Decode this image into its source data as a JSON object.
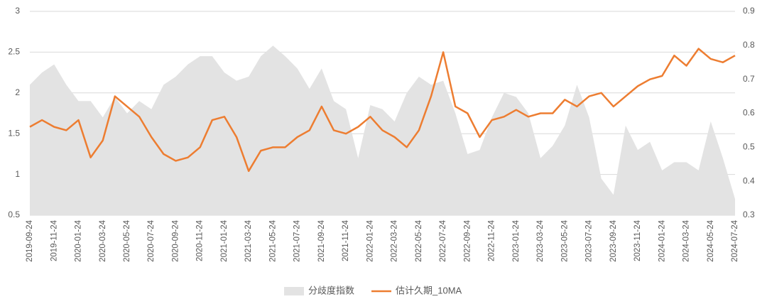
{
  "chart_data": {
    "type": "area-line",
    "categories": [
      "2019-09-24",
      null,
      "2019-11-24",
      null,
      "2020-01-24",
      null,
      "2020-03-24",
      null,
      "2020-05-24",
      null,
      "2020-07-24",
      null,
      "2020-09-24",
      null,
      "2020-11-24",
      null,
      "2021-01-24",
      null,
      "2021-03-24",
      null,
      "2021-05-24",
      null,
      "2021-07-24",
      null,
      "2021-09-24",
      null,
      "2021-11-24",
      null,
      "2022-01-24",
      null,
      "2022-03-24",
      null,
      "2022-05-24",
      null,
      "2022-07-24",
      null,
      "2022-09-24",
      null,
      "2022-11-24",
      null,
      "2023-01-24",
      null,
      "2023-03-24",
      null,
      "2023-05-24",
      null,
      "2023-07-24",
      null,
      "2023-09-24",
      null,
      "2023-11-24",
      null,
      "2024-01-24",
      null,
      "2024-03-24",
      null,
      "2024-05-24",
      null,
      "2024-07-24"
    ],
    "series": [
      {
        "name": "分歧度指数",
        "color": "#e3e3e3",
        "axis": "y",
        "values": [
          2.1,
          2.25,
          2.35,
          2.1,
          1.9,
          1.9,
          1.7,
          1.95,
          1.75,
          1.9,
          1.8,
          2.1,
          2.2,
          2.35,
          2.45,
          2.45,
          2.25,
          2.15,
          2.2,
          2.45,
          2.58,
          2.45,
          2.3,
          2.05,
          2.3,
          1.9,
          1.8,
          1.2,
          1.85,
          1.8,
          1.65,
          2.0,
          2.2,
          2.1,
          2.15,
          1.75,
          1.25,
          1.3,
          1.7,
          2.0,
          1.95,
          1.75,
          1.2,
          1.35,
          1.6,
          2.1,
          1.7,
          0.95,
          0.75,
          1.6,
          1.3,
          1.4,
          1.05,
          1.15,
          1.15,
          1.05,
          1.65,
          1.2,
          0.7
        ]
      },
      {
        "name": "估计久期_10MA",
        "color": "#ed7d31",
        "axis": "y2",
        "values": [
          0.56,
          0.58,
          0.56,
          0.55,
          0.58,
          0.47,
          0.52,
          0.65,
          0.62,
          0.59,
          0.53,
          0.48,
          0.46,
          0.47,
          0.5,
          0.58,
          0.59,
          0.53,
          0.43,
          0.49,
          0.5,
          0.5,
          0.53,
          0.55,
          0.62,
          0.55,
          0.54,
          0.56,
          0.59,
          0.55,
          0.53,
          0.5,
          0.55,
          0.65,
          0.78,
          0.62,
          0.6,
          0.53,
          0.58,
          0.59,
          0.61,
          0.59,
          0.6,
          0.6,
          0.64,
          0.62,
          0.65,
          0.66,
          0.62,
          0.65,
          0.68,
          0.7,
          0.71,
          0.77,
          0.74,
          0.79,
          0.76,
          0.75,
          0.77
        ]
      }
    ],
    "ylim": [
      0.5,
      3
    ],
    "yticks": [
      0.5,
      1,
      1.5,
      2,
      2.5,
      3
    ],
    "y2lim": [
      0.3,
      0.9
    ],
    "y2ticks": [
      0.3,
      0.4,
      0.5,
      0.6,
      0.7,
      0.8,
      0.9
    ],
    "grid": true,
    "legend": "bottom"
  }
}
